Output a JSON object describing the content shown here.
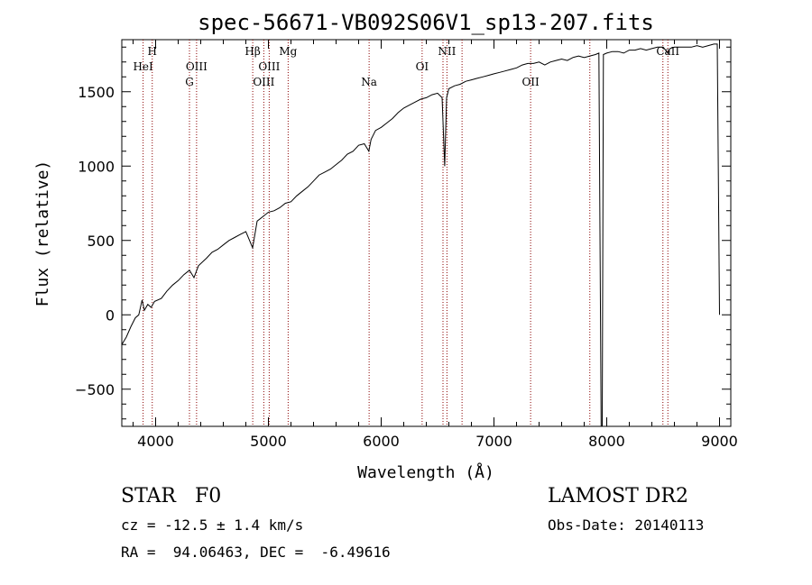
{
  "chart_data": {
    "type": "line",
    "title": "spec-56671-VB092S06V1_sp13-207.fits",
    "xlabel": "Wavelength (Å)",
    "ylabel": "Flux (relative)",
    "xlim": [
      3700,
      9100
    ],
    "ylim": [
      -750,
      1850
    ],
    "xticks": [
      4000,
      5000,
      6000,
      7000,
      8000,
      9000
    ],
    "yticks": [
      -500,
      0,
      500,
      1000,
      1500
    ],
    "line_color": "#000000",
    "marker_color": "#8b0000",
    "series": [
      {
        "x": [
          3700,
          3740,
          3780,
          3820,
          3850,
          3880,
          3900,
          3930,
          3960,
          3990,
          4050,
          4100,
          4150,
          4200,
          4250,
          4300,
          4340,
          4380,
          4450,
          4500,
          4550,
          4600,
          4650,
          4700,
          4750,
          4800,
          4860,
          4900,
          4950,
          5000,
          5050,
          5100,
          5150,
          5200,
          5250,
          5300,
          5350,
          5400,
          5450,
          5500,
          5550,
          5600,
          5650,
          5700,
          5750,
          5800,
          5850,
          5890,
          5910,
          5950,
          6000,
          6050,
          6100,
          6150,
          6200,
          6250,
          6300,
          6350,
          6400,
          6450,
          6500,
          6540,
          6563,
          6580,
          6600,
          6650,
          6700,
          6750,
          6800,
          6850,
          6900,
          6950,
          7000,
          7050,
          7100,
          7150,
          7200,
          7250,
          7300,
          7350,
          7400,
          7450,
          7500,
          7550,
          7600,
          7650,
          7700,
          7750,
          7800,
          7850,
          7900,
          7930,
          7950,
          7960,
          7970,
          8000,
          8050,
          8100,
          8150,
          8200,
          8250,
          8300,
          8350,
          8400,
          8450,
          8500,
          8542,
          8560,
          8600,
          8650,
          8700,
          8750,
          8800,
          8850,
          8900,
          8950,
          8980,
          9000
        ],
        "y": [
          -200,
          -150,
          -80,
          -20,
          0,
          100,
          30,
          70,
          50,
          90,
          110,
          160,
          200,
          230,
          270,
          300,
          250,
          330,
          380,
          420,
          440,
          470,
          500,
          520,
          540,
          560,
          450,
          630,
          660,
          690,
          700,
          720,
          750,
          760,
          800,
          830,
          860,
          900,
          940,
          960,
          980,
          1010,
          1040,
          1080,
          1100,
          1140,
          1150,
          1100,
          1180,
          1240,
          1260,
          1290,
          1320,
          1360,
          1390,
          1410,
          1430,
          1450,
          1460,
          1480,
          1490,
          1460,
          1000,
          1460,
          1520,
          1540,
          1550,
          1570,
          1580,
          1590,
          1600,
          1610,
          1620,
          1630,
          1640,
          1650,
          1660,
          1680,
          1690,
          1690,
          1700,
          1680,
          1700,
          1710,
          1720,
          1710,
          1730,
          1740,
          1730,
          1740,
          1750,
          1760,
          -750,
          -750,
          1750,
          1760,
          1770,
          1770,
          1760,
          1780,
          1780,
          1790,
          1780,
          1790,
          1800,
          1800,
          1760,
          1790,
          1800,
          1800,
          1800,
          1800,
          1810,
          1800,
          1810,
          1820,
          1820,
          0
        ]
      }
    ],
    "lines": [
      {
        "wavelength": 3889,
        "label": "HeI",
        "row": 2
      },
      {
        "wavelength": 3970,
        "label": "H",
        "row": 1
      },
      {
        "wavelength": 4300,
        "label": "G",
        "row": 3
      },
      {
        "wavelength": 4363,
        "label": "OIII",
        "row": 2
      },
      {
        "wavelength": 4861,
        "label": "Hβ",
        "row": 1
      },
      {
        "wavelength": 4959,
        "label": "OIII",
        "row": 3
      },
      {
        "wavelength": 5007,
        "label": "OIII",
        "row": 2
      },
      {
        "wavelength": 5175,
        "label": "Mg",
        "row": 1
      },
      {
        "wavelength": 5893,
        "label": "Na",
        "row": 3
      },
      {
        "wavelength": 6363,
        "label": "OI",
        "row": 2
      },
      {
        "wavelength": 6548,
        "label": "",
        "row": 0
      },
      {
        "wavelength": 6583,
        "label": "NII",
        "row": 1
      },
      {
        "wavelength": 6717,
        "label": "",
        "row": 0
      },
      {
        "wavelength": 7325,
        "label": "OII",
        "row": 3
      },
      {
        "wavelength": 7850,
        "label": "",
        "row": 0
      },
      {
        "wavelength": 8498,
        "label": "",
        "row": 0
      },
      {
        "wavelength": 8542,
        "label": "CaII",
        "row": 1
      }
    ]
  },
  "info": {
    "class_line": "STAR   F0",
    "cz_line": "cz = -12.5 ± 1.4 km/s",
    "radec_line": "RA =  94.06463, DEC =  -6.49616",
    "survey": "LAMOST DR2",
    "obs_date": "Obs-Date: 20140113"
  }
}
